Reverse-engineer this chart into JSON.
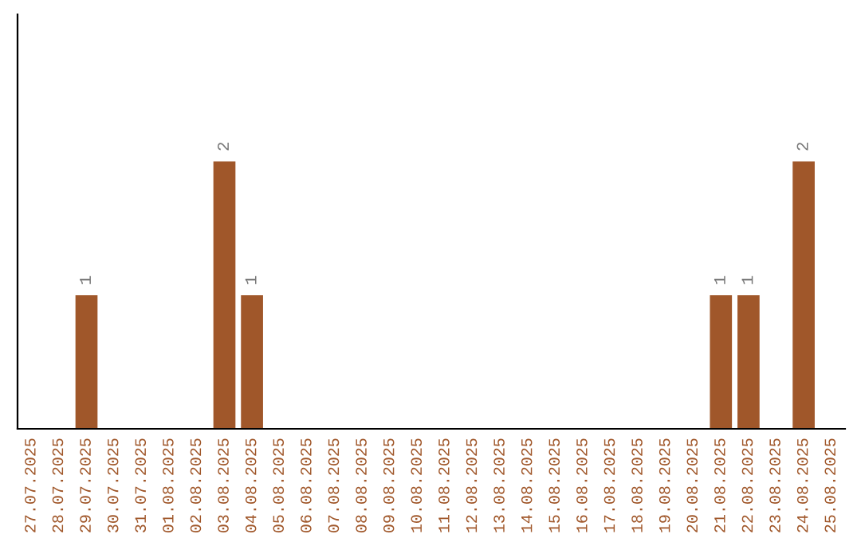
{
  "chart_data": {
    "type": "bar",
    "categories": [
      "27.07.2025",
      "28.07.2025",
      "29.07.2025",
      "30.07.2025",
      "31.07.2025",
      "01.08.2025",
      "02.08.2025",
      "03.08.2025",
      "04.08.2025",
      "05.08.2025",
      "06.08.2025",
      "07.08.2025",
      "08.08.2025",
      "09.08.2025",
      "10.08.2025",
      "11.08.2025",
      "12.08.2025",
      "13.08.2025",
      "14.08.2025",
      "15.08.2025",
      "16.08.2025",
      "17.08.2025",
      "18.08.2025",
      "19.08.2025",
      "20.08.2025",
      "21.08.2025",
      "22.08.2025",
      "23.08.2025",
      "24.08.2025",
      "25.08.2025"
    ],
    "values": [
      0,
      0,
      1,
      0,
      0,
      0,
      0,
      2,
      1,
      0,
      0,
      0,
      0,
      0,
      0,
      0,
      0,
      0,
      0,
      0,
      0,
      0,
      0,
      0,
      0,
      1,
      1,
      0,
      2,
      0
    ],
    "color": "#a0572a",
    "value_labels": [
      null,
      null,
      "1",
      null,
      null,
      null,
      null,
      "2",
      "1",
      null,
      null,
      null,
      null,
      null,
      null,
      null,
      null,
      null,
      null,
      null,
      null,
      null,
      null,
      null,
      null,
      "1",
      "1",
      null,
      "2",
      null
    ],
    "tick_labels": "x",
    "grid": false,
    "legend": false
  }
}
